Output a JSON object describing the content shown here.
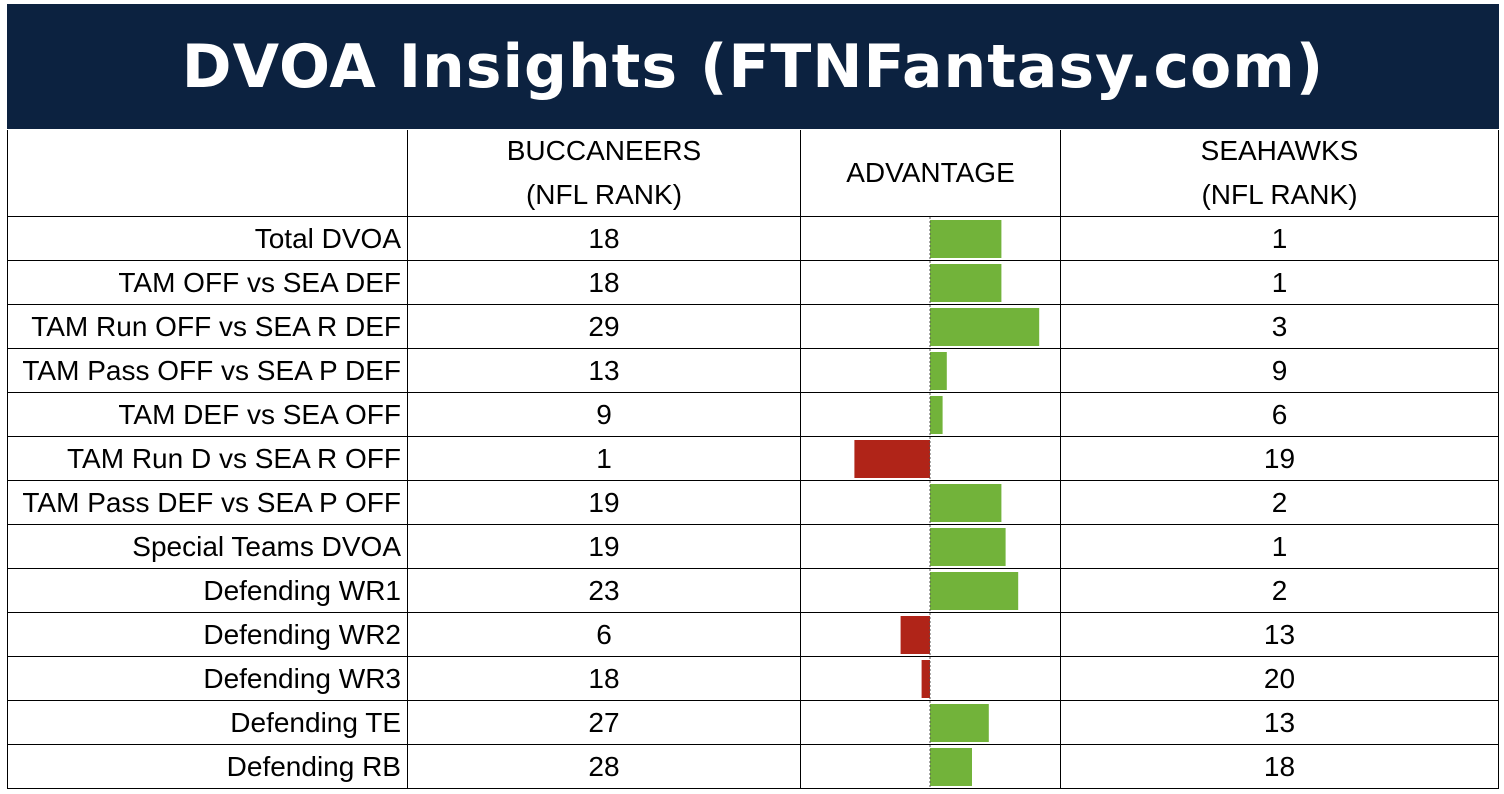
{
  "title": "DVOA Insights (FTNFantasy.com)",
  "headers": {
    "team1": [
      "BUCCANEERS",
      "(NFL RANK)"
    ],
    "advantage": "ADVANTAGE",
    "team2": [
      "SEAHAWKS",
      "(NFL RANK)"
    ]
  },
  "colors": {
    "banner": "#0c2240",
    "positive": "#72b33a",
    "negative": "#b02418"
  },
  "chart_data": {
    "type": "table",
    "columns": [
      "",
      "BUCCANEERS (NFL RANK)",
      "ADVANTAGE",
      "SEAHAWKS (NFL RANK)"
    ],
    "rows": [
      {
        "label": "Total DVOA",
        "team1": "18",
        "team2": "1",
        "advantage": 17
      },
      {
        "label": "TAM OFF vs SEA DEF",
        "team1": "18",
        "team2": "1",
        "advantage": 17
      },
      {
        "label": "TAM Run OFF vs SEA R DEF",
        "team1": "29",
        "team2": "3",
        "advantage": 26
      },
      {
        "label": "TAM Pass OFF vs SEA P DEF",
        "team1": "13",
        "team2": "9",
        "advantage": 4
      },
      {
        "label": "TAM DEF vs SEA OFF",
        "team1": "9",
        "team2": "6",
        "advantage": 3
      },
      {
        "label": "TAM Run D vs SEA R OFF",
        "team1": "1",
        "team2": "19",
        "advantage": -18
      },
      {
        "label": "TAM Pass DEF vs SEA P OFF",
        "team1": "19",
        "team2": "2",
        "advantage": 17
      },
      {
        "label": "Special Teams DVOA",
        "team1": "19",
        "team2": "1",
        "advantage": 18
      },
      {
        "label": "Defending WR1",
        "team1": "23",
        "team2": "2",
        "advantage": 21
      },
      {
        "label": "Defending WR2",
        "team1": "6",
        "team2": "13",
        "advantage": -7
      },
      {
        "label": "Defending WR3",
        "team1": "18",
        "team2": "20",
        "advantage": -2
      },
      {
        "label": "Defending TE",
        "team1": "27",
        "team2": "13",
        "advantage": 14
      },
      {
        "label": "Defending RB",
        "team1": "28",
        "team2": "18",
        "advantage": 10
      }
    ],
    "advantage_range": [
      -31,
      31
    ]
  }
}
